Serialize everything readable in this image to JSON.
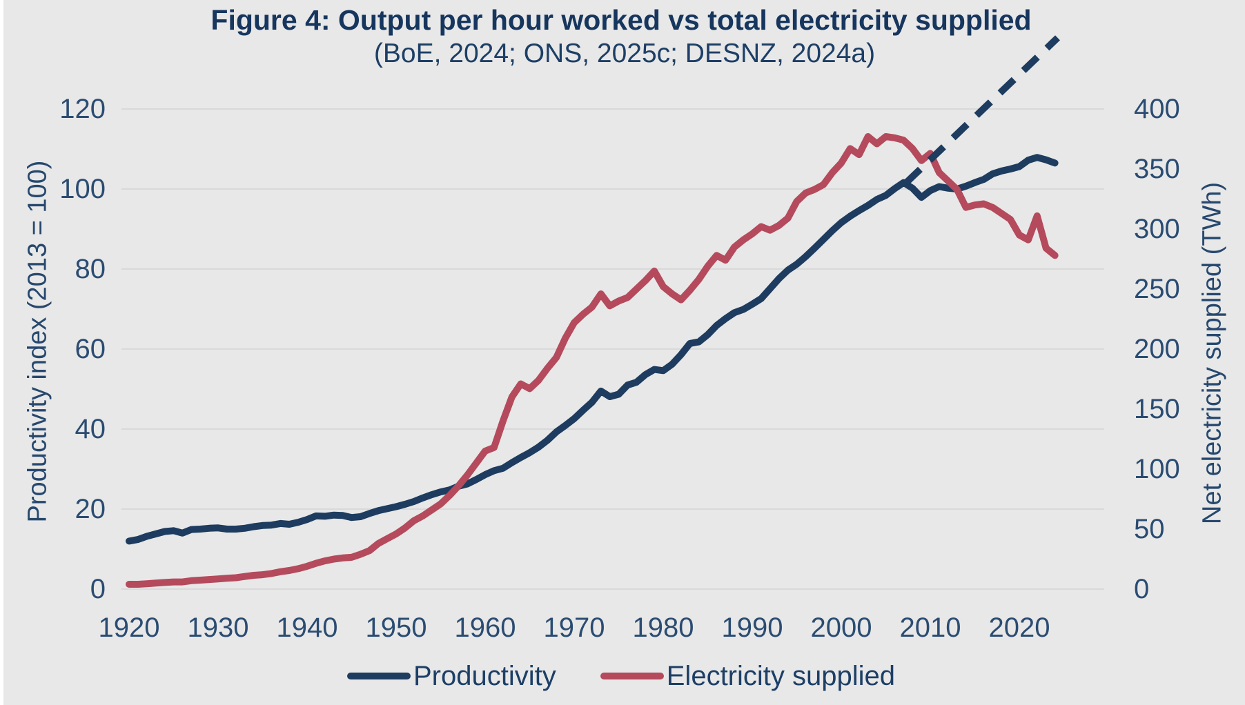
{
  "figure": {
    "title": "Figure 4: Output per hour worked vs total electricity supplied",
    "subtitle": "(BoE, 2024; ONS, 2025c; DESNZ, 2024a)"
  },
  "colors": {
    "background": "#e8e8e8",
    "gridline": "#d9d9d9",
    "text": "#1d3f66",
    "productivity": "#1d3c5f",
    "electricity": "#b44a5c"
  },
  "legend": {
    "items": [
      {
        "label": "Productivity",
        "color_key": "productivity"
      },
      {
        "label": "Electricity supplied",
        "color_key": "electricity"
      }
    ]
  },
  "chart_data": {
    "type": "line",
    "title": "Figure 4: Output per hour worked vs total electricity supplied",
    "subtitle": "(BoE, 2024; ONS, 2025c; DESNZ, 2024a)",
    "grid": "horizontal-only",
    "legend_position": "bottom-center",
    "axes": {
      "x": {
        "label": "",
        "ticks": [
          1920,
          1930,
          1940,
          1950,
          1960,
          1970,
          1980,
          1990,
          2000,
          2010,
          2020
        ],
        "range": [
          1917,
          2026
        ]
      },
      "left": {
        "label": "Productivity index (2013 = 100)",
        "ticks": [
          0,
          20,
          40,
          60,
          80,
          100,
          120
        ],
        "range": [
          0,
          120
        ]
      },
      "right": {
        "label": "Net electricity supplied (TWh)",
        "ticks": [
          0,
          50,
          100,
          150,
          200,
          250,
          300,
          350,
          400
        ],
        "range": [
          0,
          400
        ]
      }
    },
    "x_years": [
      1920,
      1921,
      1922,
      1923,
      1924,
      1925,
      1926,
      1927,
      1928,
      1929,
      1930,
      1931,
      1932,
      1933,
      1934,
      1935,
      1936,
      1937,
      1938,
      1939,
      1940,
      1941,
      1942,
      1943,
      1944,
      1945,
      1946,
      1947,
      1948,
      1949,
      1950,
      1951,
      1952,
      1953,
      1954,
      1955,
      1956,
      1957,
      1958,
      1959,
      1960,
      1961,
      1962,
      1963,
      1964,
      1965,
      1966,
      1967,
      1968,
      1969,
      1970,
      1971,
      1972,
      1973,
      1974,
      1975,
      1976,
      1977,
      1978,
      1979,
      1980,
      1981,
      1982,
      1983,
      1984,
      1985,
      1986,
      1987,
      1988,
      1989,
      1990,
      1991,
      1992,
      1993,
      1994,
      1995,
      1996,
      1997,
      1998,
      1999,
      2000,
      2001,
      2002,
      2003,
      2004,
      2005,
      2006,
      2007,
      2008,
      2009,
      2010,
      2011,
      2012,
      2013,
      2014,
      2015,
      2016,
      2017,
      2018,
      2019,
      2020,
      2021,
      2022,
      2023,
      2024
    ],
    "series": [
      {
        "name": "Productivity",
        "axis": "left",
        "color_key": "productivity",
        "values": [
          12,
          12.4,
          13.2,
          13.8,
          14.4,
          14.6,
          14,
          14.9,
          15,
          15.2,
          15.3,
          15,
          15,
          15.2,
          15.6,
          15.9,
          16,
          16.4,
          16.2,
          16.7,
          17.4,
          18.3,
          18.2,
          18.5,
          18.4,
          17.9,
          18.1,
          18.9,
          19.6,
          20.1,
          20.6,
          21.2,
          21.9,
          22.8,
          23.6,
          24.3,
          24.8,
          25.7,
          26.3,
          27.4,
          28.6,
          29.6,
          30.2,
          31.6,
          32.9,
          34.1,
          35.5,
          37.2,
          39.3,
          40.9,
          42.6,
          44.7,
          46.7,
          49.5,
          48.1,
          48.7,
          51,
          51.7,
          53.6,
          54.9,
          54.6,
          56.2,
          58.6,
          61.4,
          61.8,
          63.6,
          65.9,
          67.6,
          69.1,
          69.9,
          71.2,
          72.6,
          75.1,
          77.6,
          79.7,
          81.2,
          83.1,
          85.2,
          87.4,
          89.6,
          91.6,
          93.2,
          94.6,
          95.9,
          97.4,
          98.4,
          100.1,
          101.6,
          100.2,
          97.9,
          99.6,
          100.6,
          100.2,
          100,
          100.7,
          101.6,
          102.4,
          103.8,
          104.5,
          105,
          105.6,
          107.2,
          107.9,
          107.3,
          106.5
        ]
      },
      {
        "name": "Electricity supplied",
        "axis": "right",
        "color_key": "electricity",
        "values": [
          4,
          4,
          4.5,
          5,
          5.5,
          6,
          6,
          7,
          7.5,
          8,
          8.5,
          9,
          9.5,
          10.5,
          11.5,
          12,
          13,
          14.5,
          15.5,
          17,
          19,
          21.5,
          23.5,
          25,
          26,
          26.5,
          29,
          32,
          38,
          42,
          46,
          51,
          57,
          61,
          66,
          71,
          78,
          86,
          95,
          105,
          115,
          118,
          140,
          160,
          171,
          167,
          174,
          184,
          193,
          209,
          222,
          229,
          235,
          246,
          236,
          240,
          243,
          250,
          257,
          265,
          252,
          246,
          241,
          249,
          258,
          269,
          278,
          274,
          285,
          291,
          296,
          302,
          299,
          303,
          309,
          323,
          330,
          333,
          337,
          347,
          355,
          367,
          362,
          377,
          371,
          377,
          376,
          374,
          367,
          357,
          363,
          347,
          340,
          333,
          318,
          320,
          321,
          318,
          313,
          308,
          295,
          291,
          311,
          284,
          278
        ]
      }
    ],
    "trend_line": {
      "name": "pre-2008-productivity-trend-extrapolation",
      "axis": "left",
      "style": "dashed",
      "color_key": "productivity",
      "x": [
        2007.3,
        2024.3
      ],
      "y": [
        101.6,
        137.8
      ]
    }
  }
}
